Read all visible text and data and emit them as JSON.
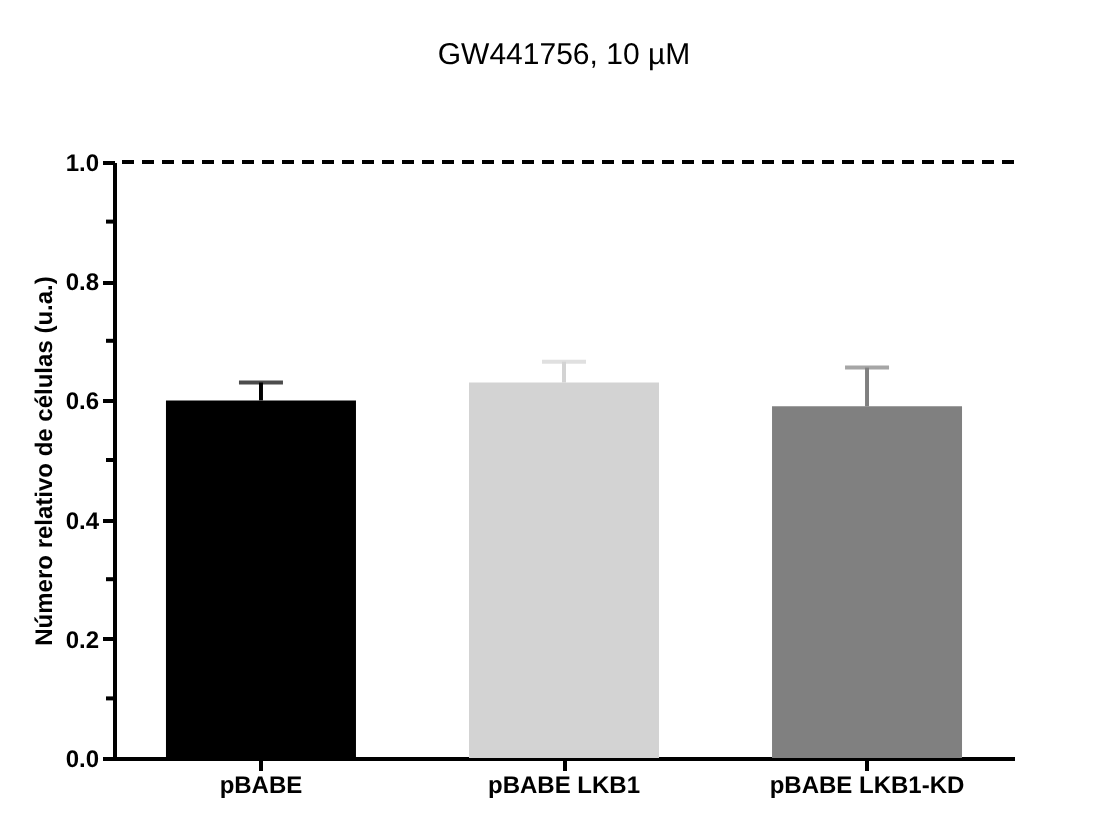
{
  "chart_data": {
    "type": "bar",
    "title": "GW441756, 10 µM",
    "ylabel": "Número relativo de células (u.a.)",
    "categories": [
      "pBABE",
      "pBABE LKB1",
      "pBABE LKB1-KD"
    ],
    "values": [
      0.6,
      0.63,
      0.59
    ],
    "colors": [
      "#000000",
      "#d3d3d3",
      "#808080"
    ],
    "errors": [
      [
        0.6,
        0.63
      ],
      [
        0.63,
        0.665
      ],
      [
        0.59,
        0.655
      ]
    ],
    "ylim": [
      0,
      1.0
    ],
    "yticks": [
      {
        "value": 0.0,
        "label": "0.0"
      },
      {
        "value": 0.1,
        "label": null
      },
      0.2,
      {
        "value": 0.3,
        "label": null
      },
      0.4,
      {
        "value": 0.5,
        "label": null
      },
      0.6,
      {
        "value": 0.7,
        "label": null
      },
      0.8,
      {
        "value": 0.9,
        "label": null
      },
      {
        "value": 1.0,
        "label": "1.0"
      }
    ],
    "ref_lines": [
      {
        "axis": "y",
        "value": 1.0,
        "color": "#000000",
        "line_style": "dashed"
      }
    ],
    "grid": false,
    "legend": false
  }
}
